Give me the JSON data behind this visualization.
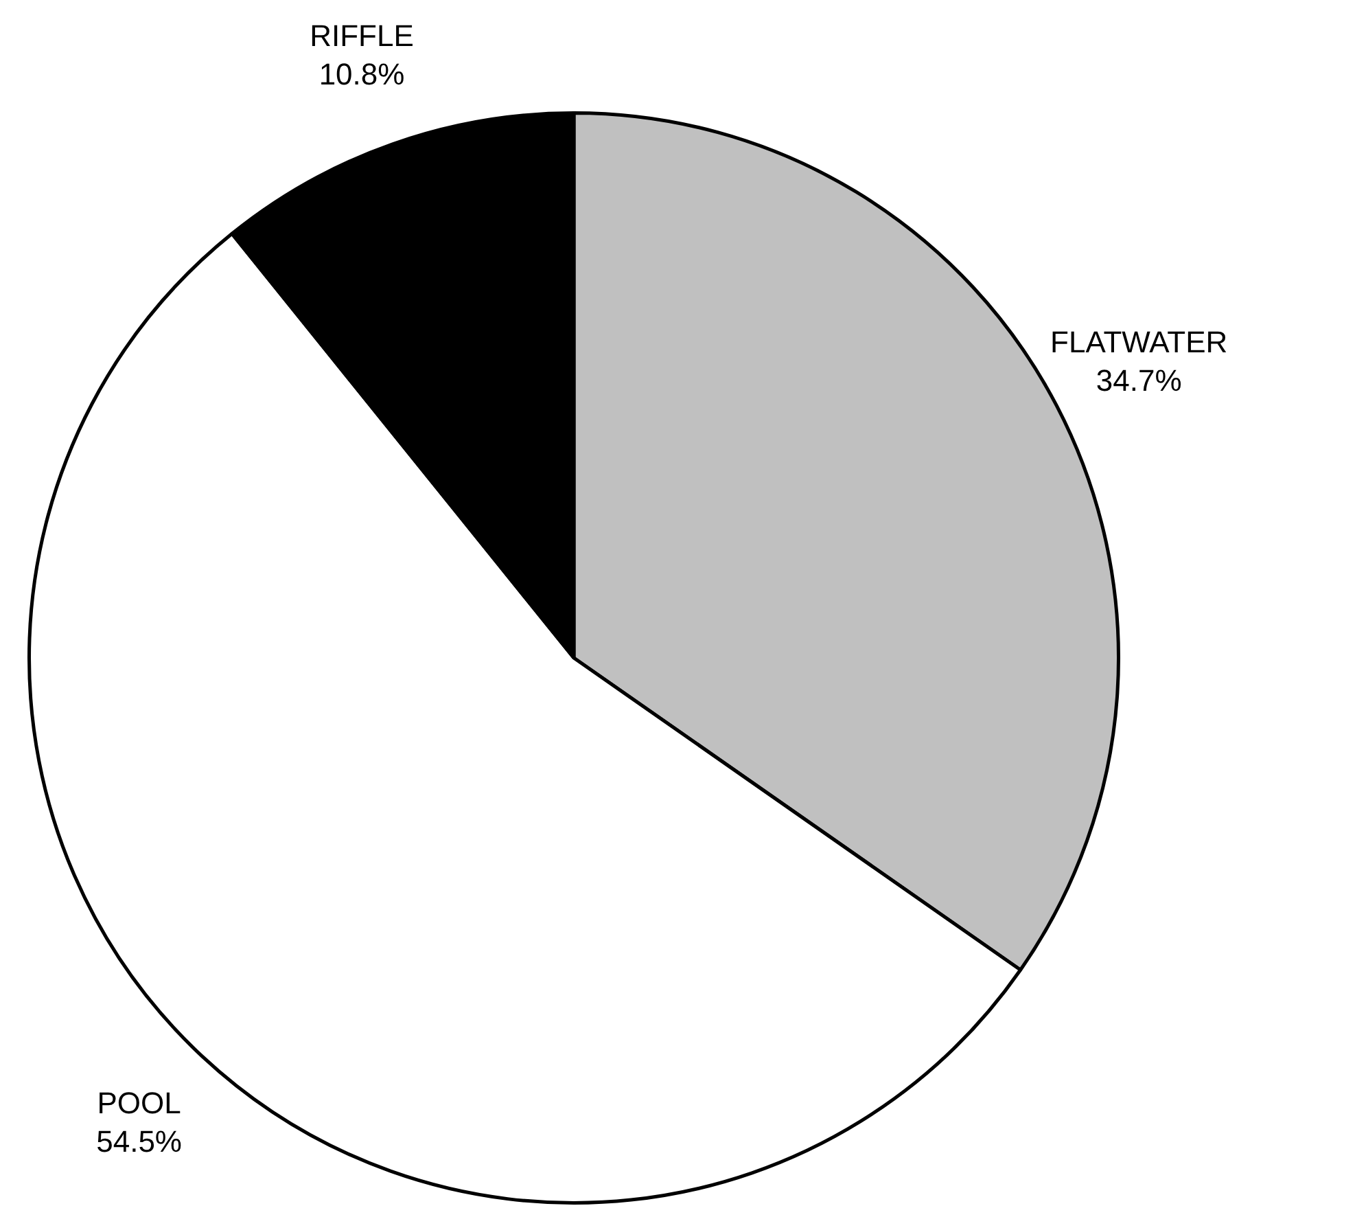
{
  "chart_data": {
    "type": "pie",
    "categories": [
      "FLATWATER",
      "POOL",
      "RIFFLE"
    ],
    "values": [
      34.7,
      54.5,
      10.8
    ],
    "value_labels": [
      "34.7%",
      "54.5%",
      "10.8%"
    ],
    "colors": [
      "#c0c0c0",
      "#ffffff",
      "#000000"
    ],
    "legend": false
  }
}
